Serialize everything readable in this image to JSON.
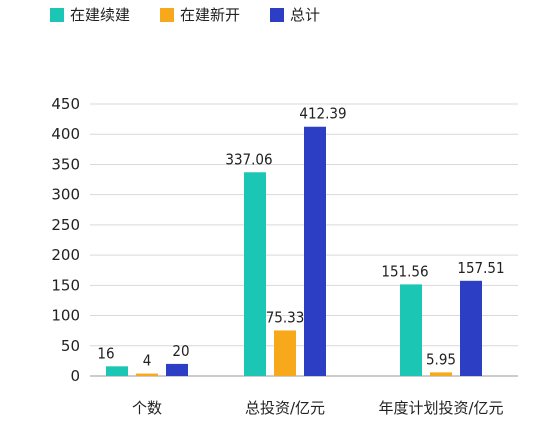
{
  "chart_data": {
    "type": "bar",
    "categories": [
      "个数",
      "总投资/亿元",
      "年度计划投资/亿元"
    ],
    "series": [
      {
        "name": "在建续建",
        "color": "#1cc6b4",
        "values": [
          16,
          337.06,
          151.56
        ]
      },
      {
        "name": "在建新开",
        "color": "#f7a81b",
        "values": [
          4,
          75.33,
          5.95
        ]
      },
      {
        "name": "总计",
        "color": "#2c3fc4",
        "values": [
          20,
          412.39,
          157.51
        ]
      }
    ],
    "y_ticks": [
      0,
      50,
      100,
      150,
      200,
      250,
      300,
      350,
      400,
      450
    ],
    "ylim": [
      0,
      450
    ],
    "grid": true,
    "legend_position": "top-left"
  }
}
